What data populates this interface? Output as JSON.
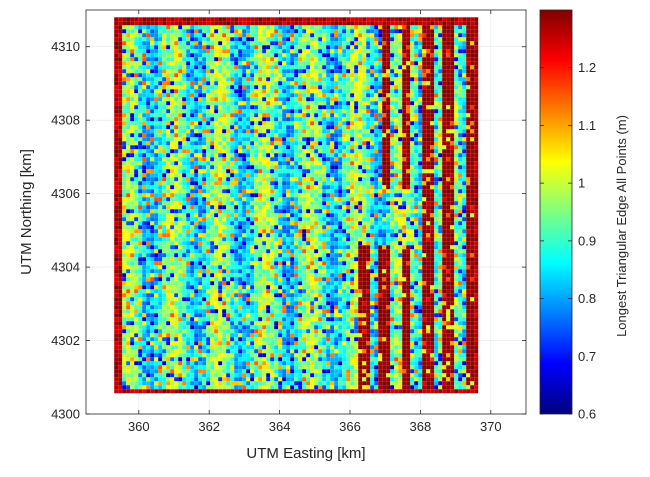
{
  "chart_data": {
    "type": "heatmap",
    "title": "",
    "xlabel": "UTM Easting [km]",
    "ylabel": "UTM Northing [km]",
    "xlim": [
      358.5,
      371
    ],
    "ylim": [
      4300,
      4311
    ],
    "xticks": [
      360,
      362,
      364,
      366,
      368,
      370
    ],
    "yticks": [
      4300,
      4302,
      4304,
      4306,
      4308,
      4310
    ],
    "grid": true,
    "colorbar": {
      "label": "Longest Triangular Edge All Points (m)",
      "range": [
        0.6,
        1.3
      ],
      "ticks": [
        0.6,
        0.7,
        0.8,
        0.9,
        1,
        1.1,
        1.2
      ],
      "tick_labels": [
        "0.6",
        "0.7",
        "0.8",
        "0.9",
        "1",
        "1.1",
        "1.2"
      ],
      "colormap": "jet"
    },
    "survey_extent": {
      "easting": [
        359.3,
        369.6
      ],
      "northing": [
        4300.6,
        4310.8
      ]
    },
    "high_value_stripe_region": {
      "easting_from": 366.2,
      "northing_from": 4300.6,
      "stripe_period_km": 0.6,
      "value": 1.3
    }
  },
  "colors": {
    "jet_stops": [
      "#00007f",
      "#0000ff",
      "#007fff",
      "#00ffff",
      "#7fff7f",
      "#ffff00",
      "#ff7f00",
      "#ff0000",
      "#7f0000"
    ],
    "axis": "#262626",
    "grid": "#e6e6e6"
  }
}
